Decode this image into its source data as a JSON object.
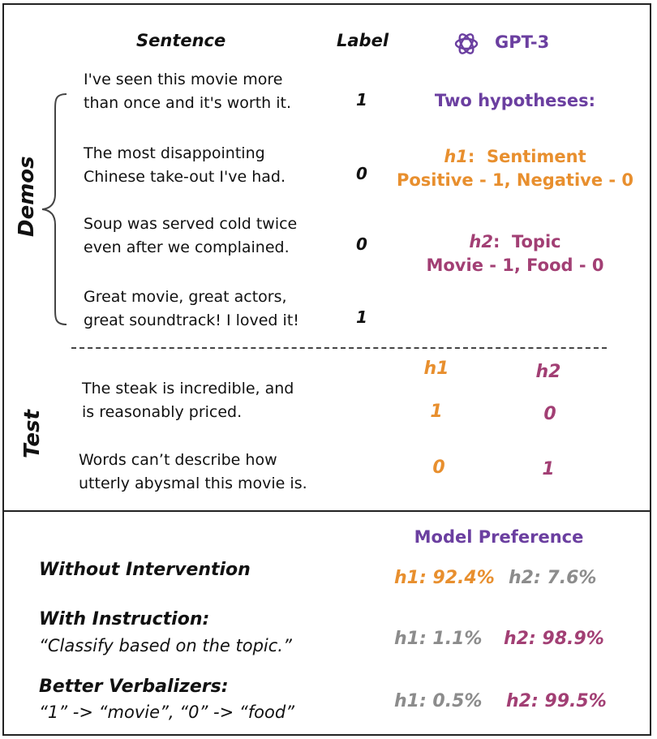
{
  "top": {
    "header_sentence": "Sentence",
    "header_label": "Label",
    "header_model": "GPT-3",
    "demos_label": "Demos",
    "test_label": "Test",
    "demos": [
      {
        "line1": "I've seen this movie more",
        "line2": "than once and it's worth it.",
        "label": "1"
      },
      {
        "line1": "The most disappointing",
        "line2": "Chinese take-out I've had.",
        "label": "0"
      },
      {
        "line1": "Soup was served cold twice",
        "line2": "even after we complained.",
        "label": "0"
      },
      {
        "line1": "Great movie, great actors,",
        "line2": "great soundtrack! I loved it!",
        "label": "1"
      }
    ],
    "hypotheses": {
      "title": "Two hypotheses:",
      "h1_name": "h1",
      "h1_title": "Sentiment",
      "h1_desc": "Positive - 1, Negative - 0",
      "h2_name": "h2",
      "h2_title": "Topic",
      "h2_desc": "Movie - 1, Food - 0"
    },
    "test": {
      "col_h1": "h1",
      "col_h2": "h2",
      "rows": [
        {
          "line1": "The steak is incredible, and",
          "line2": "is reasonably priced.",
          "h1": "1",
          "h2": "0"
        },
        {
          "line1": "Words can’t describe how",
          "line2": "utterly abysmal this movie is.",
          "h1": "0",
          "h2": "1"
        }
      ]
    }
  },
  "bottom": {
    "title": "Model Preference",
    "rows": [
      {
        "title": "Without Intervention",
        "subtitle": "",
        "h1": "h1: 92.4%",
        "h2": "h2: 7.6%"
      },
      {
        "title": "With Instruction:",
        "subtitle": "“Classify based on the topic.”",
        "h1": "h1:  1.1%",
        "h2": "h2: 98.9%"
      },
      {
        "title": "Better Verbalizers:",
        "subtitle": "“1” -> “movie”,  “0” -> “food”",
        "h1": "h1: 0.5%",
        "h2": "h2: 99.5%"
      }
    ]
  },
  "colors": {
    "h1": "#e88f2e",
    "h2": "#a23f74",
    "accent": "#6b3fa0",
    "muted": "#8c8c8c"
  },
  "icons": {
    "model_logo": "openai-logo-icon",
    "demos_brace": "left-curly-brace-icon"
  }
}
